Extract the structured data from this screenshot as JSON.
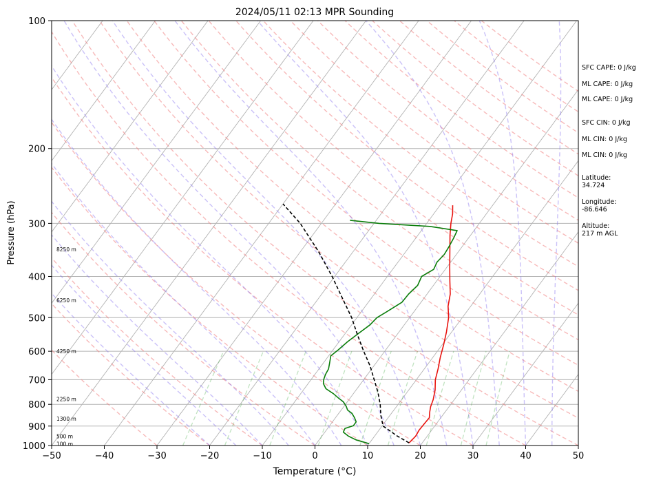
{
  "chart_data": {
    "type": "line",
    "chart_kind": "Skew-T log-P",
    "title": "2024/05/11 02:13 MPR Sounding",
    "xlabel": "Temperature (°C)",
    "ylabel": "Pressure (hPa)",
    "xlim": [
      -50,
      50
    ],
    "ylim": [
      1000,
      100
    ],
    "y_scale": "log",
    "grid": true,
    "x_ticks": [
      -50,
      -40,
      -30,
      -20,
      -10,
      0,
      10,
      20,
      30,
      40,
      50
    ],
    "y_ticks": [
      100,
      200,
      300,
      400,
      500,
      600,
      700,
      800,
      900,
      1000
    ],
    "series": [
      {
        "role": "temperature",
        "color": "#e8130f",
        "points": [
          {
            "p": 986,
            "t": 17.5
          },
          {
            "p": 950,
            "t": 17.8
          },
          {
            "p": 920,
            "t": 17.6
          },
          {
            "p": 890,
            "t": 17.7
          },
          {
            "p": 860,
            "t": 17.8
          },
          {
            "p": 835,
            "t": 17.1
          },
          {
            "p": 810,
            "t": 16.5
          },
          {
            "p": 780,
            "t": 16.0
          },
          {
            "p": 740,
            "t": 15.0
          },
          {
            "p": 700,
            "t": 13.6
          },
          {
            "p": 660,
            "t": 12.6
          },
          {
            "p": 620,
            "t": 11.4
          },
          {
            "p": 580,
            "t": 10.3
          },
          {
            "p": 540,
            "t": 9.0
          },
          {
            "p": 500,
            "t": 7.4
          },
          {
            "p": 470,
            "t": 5.7
          },
          {
            "p": 440,
            "t": 4.4
          },
          {
            "p": 410,
            "t": 2.5
          },
          {
            "p": 380,
            "t": 0.5
          },
          {
            "p": 350,
            "t": -1.6
          },
          {
            "p": 320,
            "t": -3.9
          },
          {
            "p": 300,
            "t": -5.4
          },
          {
            "p": 285,
            "t": -6.4
          },
          {
            "p": 272,
            "t": -7.6
          }
        ]
      },
      {
        "role": "dewpoint",
        "color": "#0a7d0a",
        "points": [
          {
            "p": 990,
            "t": 10.0
          },
          {
            "p": 970,
            "t": 7.0
          },
          {
            "p": 950,
            "t": 5.0
          },
          {
            "p": 930,
            "t": 3.5
          },
          {
            "p": 912,
            "t": 3.3
          },
          {
            "p": 898,
            "t": 4.5
          },
          {
            "p": 880,
            "t": 4.5
          },
          {
            "p": 860,
            "t": 3.6
          },
          {
            "p": 840,
            "t": 2.5
          },
          {
            "p": 825,
            "t": 1.2
          },
          {
            "p": 808,
            "t": 0.4
          },
          {
            "p": 790,
            "t": -0.7
          },
          {
            "p": 772,
            "t": -2.3
          },
          {
            "p": 755,
            "t": -3.8
          },
          {
            "p": 735,
            "t": -5.9
          },
          {
            "p": 715,
            "t": -7.1
          },
          {
            "p": 700,
            "t": -7.6
          },
          {
            "p": 680,
            "t": -8.0
          },
          {
            "p": 660,
            "t": -8.2
          },
          {
            "p": 640,
            "t": -8.8
          },
          {
            "p": 615,
            "t": -9.6
          },
          {
            "p": 595,
            "t": -9.0
          },
          {
            "p": 570,
            "t": -8.4
          },
          {
            "p": 545,
            "t": -7.5
          },
          {
            "p": 520,
            "t": -6.5
          },
          {
            "p": 500,
            "t": -6.2
          },
          {
            "p": 485,
            "t": -5.2
          },
          {
            "p": 460,
            "t": -3.6
          },
          {
            "p": 440,
            "t": -3.5
          },
          {
            "p": 420,
            "t": -3.0
          },
          {
            "p": 400,
            "t": -3.5
          },
          {
            "p": 385,
            "t": -2.2
          },
          {
            "p": 370,
            "t": -2.6
          },
          {
            "p": 355,
            "t": -2.3
          },
          {
            "p": 340,
            "t": -2.5
          },
          {
            "p": 325,
            "t": -2.8
          },
          {
            "p": 312,
            "t": -3.2
          },
          {
            "p": 305,
            "t": -9.0
          },
          {
            "p": 300,
            "t": -19.0
          },
          {
            "p": 295,
            "t": -25.0
          }
        ]
      },
      {
        "role": "parcel",
        "color": "#000000",
        "points": [
          {
            "p": 986,
            "t": 17.5
          },
          {
            "p": 950,
            "t": 14.3
          },
          {
            "p": 900,
            "t": 10.2
          },
          {
            "p": 850,
            "t": 8.3
          },
          {
            "p": 800,
            "t": 6.6
          },
          {
            "p": 750,
            "t": 4.5
          },
          {
            "p": 700,
            "t": 2.0
          },
          {
            "p": 650,
            "t": -0.7
          },
          {
            "p": 600,
            "t": -4.0
          },
          {
            "p": 550,
            "t": -7.4
          },
          {
            "p": 500,
            "t": -11.0
          },
          {
            "p": 450,
            "t": -15.5
          },
          {
            "p": 400,
            "t": -20.5
          },
          {
            "p": 350,
            "t": -26.5
          },
          {
            "p": 300,
            "t": -34.0
          },
          {
            "p": 270,
            "t": -40.0
          }
        ]
      }
    ],
    "height_labels": [
      {
        "label": "100 m",
        "p": 990
      },
      {
        "label": "500 m",
        "p": 950
      },
      {
        "label": "1300 m",
        "p": 865
      },
      {
        "label": "2250 m",
        "p": 778
      },
      {
        "label": "4250 m",
        "p": 600
      },
      {
        "label": "6250 m",
        "p": 455
      },
      {
        "label": "8250 m",
        "p": 345
      }
    ],
    "isotherm_color": "#b3b3b3",
    "dry_adiabat_color": "#f08080",
    "moist_adiabat_color": "#8a75f0",
    "mixing_ratio_color": "#4cae4c"
  },
  "info": {
    "sfc_cape": "SFC CAPE: 0 J/kg",
    "ml_cape_1": "ML CAPE: 0 J/kg",
    "ml_cape_2": "ML CAPE: 0 J/kg",
    "sfc_cin": "SFC CIN: 0 J/kg",
    "ml_cin_1": "ML CIN: 0 J/kg",
    "ml_cin_2": "ML CIN: 0 J/kg",
    "latitude_label": "Latitude:",
    "latitude_value": "34.724",
    "longitude_label": "Longitude:",
    "longitude_value": "-86.646",
    "altitude_label": "Altitude:",
    "altitude_value": "217 m AGL"
  }
}
